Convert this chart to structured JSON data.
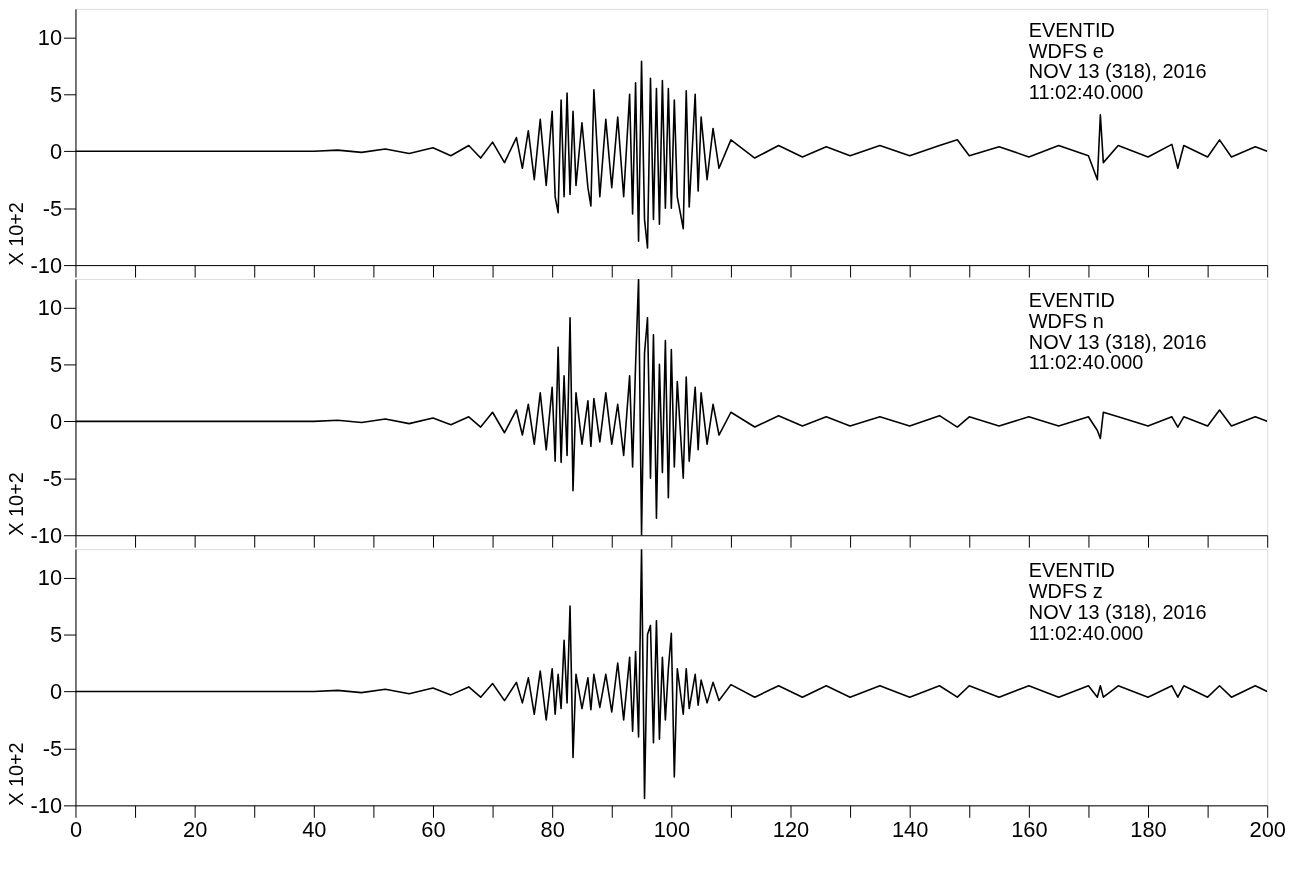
{
  "chart_data": [
    {
      "type": "line",
      "ylabel": "X 10+2",
      "tick_labels": "y",
      "annotations": [
        "EVENTID",
        "WDFS   e",
        "NOV 13 (318), 2016",
        "11:02:40.000"
      ],
      "xlim": [
        0,
        200
      ],
      "xticks": [
        0,
        {
          "value": 10,
          "label": null
        },
        20,
        {
          "value": 30,
          "label": null
        },
        40,
        {
          "value": 50,
          "label": null
        },
        60,
        {
          "value": 70,
          "label": null
        },
        80,
        {
          "value": 90,
          "label": null
        },
        100,
        {
          "value": 110,
          "label": null
        },
        120,
        {
          "value": 130,
          "label": null
        },
        140,
        {
          "value": 150,
          "label": null
        },
        160,
        {
          "value": 170,
          "label": null
        },
        180,
        {
          "value": 190,
          "label": null
        },
        200
      ],
      "ylim": [
        -10,
        12.5
      ],
      "yticks": [
        -10,
        -5,
        0,
        5,
        10
      ],
      "x": [
        0,
        40,
        44,
        48,
        52,
        56,
        60,
        63,
        66,
        68,
        70,
        72,
        74,
        75,
        76,
        77,
        78,
        79,
        80,
        80.5,
        81,
        81.5,
        82,
        82.5,
        83,
        83.5,
        84,
        85,
        86,
        86.5,
        87,
        88,
        89,
        90,
        91,
        92,
        93,
        93.5,
        94,
        94.5,
        95,
        95.5,
        96,
        96.5,
        97,
        97.5,
        98,
        98.5,
        99,
        99.5,
        100,
        100.5,
        101,
        102,
        102.5,
        103,
        104,
        104.5,
        105,
        106,
        107,
        108,
        110,
        114,
        118,
        122,
        126,
        130,
        135,
        140,
        145,
        148,
        150,
        155,
        160,
        165,
        170,
        171.5,
        172,
        172.5,
        175,
        180,
        184,
        185,
        186,
        190,
        192,
        194,
        198,
        200
      ],
      "series": [
        {
          "color": "#000000",
          "values": [
            0,
            0,
            0.1,
            -0.1,
            0.2,
            -0.2,
            0.3,
            -0.4,
            0.5,
            -0.6,
            0.8,
            -1.0,
            1.2,
            -1.5,
            1.8,
            -2.5,
            2.8,
            -3.0,
            3.5,
            -4.0,
            -5.4,
            4.5,
            -4.0,
            5.1,
            -3.8,
            3.5,
            -3.0,
            2.5,
            -3.2,
            -4.8,
            5.4,
            -4.0,
            2.8,
            -3.2,
            3.0,
            -4.0,
            5.0,
            -5.5,
            6.0,
            -7.9,
            7.9,
            -6.0,
            -8.5,
            6.4,
            -6.0,
            5.5,
            -6.4,
            6.2,
            -5.0,
            5.5,
            -5.0,
            4.5,
            -4.0,
            -6.8,
            5.3,
            -4.9,
            5.0,
            -3.5,
            3.0,
            -2.5,
            2.0,
            -1.5,
            1.0,
            -0.6,
            0.5,
            -0.5,
            0.4,
            -0.4,
            0.5,
            -0.4,
            0.5,
            1.0,
            -0.4,
            0.4,
            -0.5,
            0.5,
            -0.4,
            -2.5,
            3.2,
            -1.0,
            0.5,
            -0.5,
            0.6,
            -1.5,
            0.5,
            -0.5,
            1.0,
            -0.5,
            0.4,
            0
          ]
        }
      ]
    },
    {
      "type": "line",
      "ylabel": "X 10+2",
      "tick_labels": "y",
      "annotations": [
        "EVENTID",
        "WDFS   n",
        "NOV 13 (318), 2016",
        "11:02:40.000"
      ],
      "xlim": [
        0,
        200
      ],
      "xticks": [
        0,
        {
          "value": 10,
          "label": null
        },
        20,
        {
          "value": 30,
          "label": null
        },
        40,
        {
          "value": 50,
          "label": null
        },
        60,
        {
          "value": 70,
          "label": null
        },
        80,
        {
          "value": 90,
          "label": null
        },
        100,
        {
          "value": 110,
          "label": null
        },
        120,
        {
          "value": 130,
          "label": null
        },
        140,
        {
          "value": 150,
          "label": null
        },
        160,
        {
          "value": 170,
          "label": null
        },
        180,
        {
          "value": 190,
          "label": null
        },
        200
      ],
      "ylim": [
        -10,
        12.5
      ],
      "yticks": [
        -10,
        -5,
        0,
        5,
        10
      ],
      "x": [
        0,
        40,
        44,
        48,
        52,
        56,
        60,
        63,
        66,
        68,
        70,
        72,
        74,
        75,
        76,
        77,
        78,
        79,
        80,
        80.5,
        81,
        81.5,
        82,
        82.5,
        83,
        83.5,
        84,
        85,
        86,
        86.5,
        87,
        88,
        89,
        90,
        91,
        92,
        93,
        93.5,
        94,
        94.5,
        95,
        95.5,
        96,
        96.5,
        97,
        97.5,
        98,
        98.5,
        99,
        99.5,
        100,
        100.5,
        101,
        102,
        102.5,
        103,
        104,
        104.5,
        105,
        106,
        107,
        108,
        110,
        114,
        118,
        122,
        126,
        130,
        135,
        140,
        145,
        148,
        150,
        155,
        160,
        165,
        170,
        171.5,
        172,
        172.5,
        175,
        180,
        184,
        185,
        186,
        190,
        192,
        194,
        198,
        200
      ],
      "series": [
        {
          "color": "#000000",
          "values": [
            0,
            0,
            0.1,
            -0.1,
            0.2,
            -0.2,
            0.3,
            -0.3,
            0.4,
            -0.5,
            0.8,
            -1.0,
            1.0,
            -1.2,
            1.5,
            -2.0,
            2.5,
            -2.5,
            3.0,
            -3.5,
            6.5,
            -3.6,
            4.0,
            -3.0,
            9.1,
            -6.1,
            2.5,
            -2.0,
            1.8,
            -2.2,
            2.0,
            -1.8,
            2.5,
            -2.0,
            1.5,
            -3.0,
            4.0,
            -4.0,
            5.0,
            12.5,
            -10,
            6.0,
            9.1,
            -5.0,
            7.6,
            -8.5,
            5.0,
            -4.5,
            7.1,
            -6.7,
            6.3,
            -4.0,
            3.5,
            -5.0,
            3.9,
            -3.5,
            3.0,
            -2.5,
            2.5,
            -2.0,
            1.5,
            -1.2,
            0.8,
            -0.5,
            0.5,
            -0.4,
            0.4,
            -0.4,
            0.4,
            -0.4,
            0.5,
            -0.5,
            0.4,
            -0.4,
            0.4,
            -0.4,
            0.4,
            -0.8,
            -1.5,
            0.8,
            0.4,
            -0.4,
            0.4,
            -0.5,
            0.4,
            -0.4,
            1.0,
            -0.4,
            0.4,
            0
          ]
        }
      ]
    },
    {
      "type": "line",
      "ylabel": "X 10+2",
      "annotations": [
        "EVENTID",
        "WDFS   z",
        "NOV 13 (318), 2016",
        "11:02:40.000"
      ],
      "xlim": [
        0,
        200
      ],
      "xticks": [
        0,
        {
          "value": 10,
          "label": null
        },
        20,
        {
          "value": 30,
          "label": null
        },
        40,
        {
          "value": 50,
          "label": null
        },
        60,
        {
          "value": 70,
          "label": null
        },
        80,
        {
          "value": 90,
          "label": null
        },
        100,
        {
          "value": 110,
          "label": null
        },
        120,
        {
          "value": 130,
          "label": null
        },
        140,
        {
          "value": 150,
          "label": null
        },
        160,
        {
          "value": 170,
          "label": null
        },
        180,
        {
          "value": 190,
          "label": null
        },
        200
      ],
      "ylim": [
        -10,
        12.5
      ],
      "yticks": [
        -10,
        -5,
        0,
        5,
        10
      ],
      "x": [
        0,
        40,
        44,
        48,
        52,
        56,
        60,
        63,
        66,
        68,
        70,
        72,
        74,
        75,
        76,
        77,
        78,
        79,
        80,
        80.5,
        81,
        81.5,
        82,
        82.5,
        83,
        83.5,
        84,
        85,
        86,
        86.5,
        87,
        88,
        89,
        90,
        91,
        92,
        93,
        93.5,
        94,
        94.5,
        95,
        95.5,
        96,
        96.5,
        97,
        97.5,
        98,
        98.5,
        99,
        99.5,
        100,
        100.5,
        101,
        102,
        102.5,
        103,
        104,
        104.5,
        105,
        106,
        107,
        108,
        110,
        114,
        118,
        122,
        126,
        130,
        135,
        140,
        145,
        148,
        150,
        155,
        160,
        165,
        170,
        171.5,
        172,
        172.5,
        175,
        180,
        184,
        185,
        186,
        190,
        192,
        194,
        198,
        200
      ],
      "series": [
        {
          "color": "#000000",
          "values": [
            0,
            0,
            0.1,
            -0.1,
            0.2,
            -0.2,
            0.3,
            -0.3,
            0.4,
            -0.5,
            0.7,
            -0.8,
            0.8,
            -1.0,
            1.2,
            -2.0,
            1.8,
            -2.5,
            2.0,
            -2.0,
            1.5,
            -1.5,
            4.5,
            -1.0,
            7.5,
            -5.8,
            1.5,
            -1.5,
            1.2,
            -1.6,
            1.5,
            -1.4,
            1.5,
            -1.8,
            2.5,
            -2.5,
            3.0,
            -3.5,
            3.5,
            -4.0,
            12.5,
            -9.4,
            5.0,
            5.8,
            -4.5,
            6.2,
            -4.2,
            3.0,
            -2.5,
            2.0,
            5.1,
            -7.5,
            2.0,
            -2.0,
            2.0,
            -1.5,
            1.5,
            -1.2,
            1.0,
            -1.0,
            0.8,
            -0.8,
            0.6,
            -0.5,
            0.5,
            -0.5,
            0.5,
            -0.5,
            0.5,
            -0.5,
            0.5,
            -0.5,
            0.5,
            -0.5,
            0.5,
            -0.5,
            0.5,
            -0.5,
            0.5,
            -0.5,
            0.5,
            -0.5,
            0.5,
            -0.5,
            0.5,
            -0.5,
            0.5,
            -0.5,
            0.5,
            0
          ]
        }
      ]
    }
  ]
}
